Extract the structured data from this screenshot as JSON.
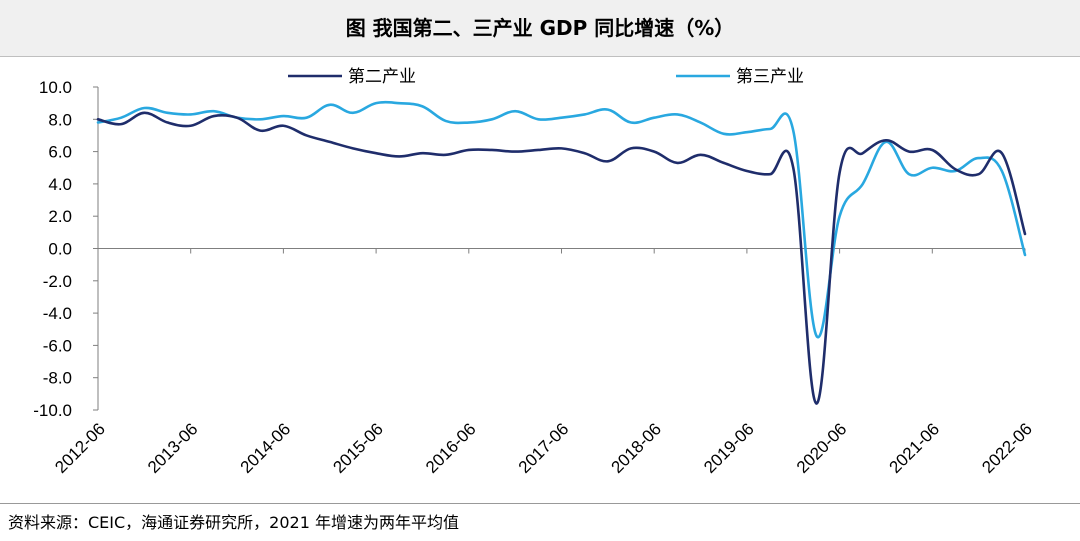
{
  "header": {
    "title": "图  我国第二、三产业 GDP 同比增速（%）"
  },
  "source": {
    "text": "资料来源：CEIC，海通证券研究所，2021 年增速为两年平均值"
  },
  "chart_data": {
    "type": "line",
    "title": "图  我国第二、三产业 GDP 同比增速（%）",
    "xlabel": "",
    "ylabel": "",
    "ylim": [
      -10,
      10
    ],
    "yticks": [
      "10.0",
      "8.0",
      "6.0",
      "4.0",
      "2.0",
      "0.0",
      "-2.0",
      "-4.0",
      "-6.0",
      "-8.0",
      "-10.0"
    ],
    "categories": [
      "2012-06",
      "2013-06",
      "2014-06",
      "2015-06",
      "2016-06",
      "2017-06",
      "2018-06",
      "2019-06",
      "2020-06",
      "2021-06",
      "2022-06"
    ],
    "legend_position": "top",
    "x": [
      "2012-06",
      "2012-09",
      "2012-12",
      "2013-03",
      "2013-06",
      "2013-09",
      "2013-12",
      "2014-03",
      "2014-06",
      "2014-09",
      "2014-12",
      "2015-03",
      "2015-06",
      "2015-09",
      "2015-12",
      "2016-03",
      "2016-06",
      "2016-09",
      "2016-12",
      "2017-03",
      "2017-06",
      "2017-09",
      "2017-12",
      "2018-03",
      "2018-06",
      "2018-09",
      "2018-12",
      "2019-03",
      "2019-06",
      "2019-09",
      "2019-12",
      "2020-03",
      "2020-06",
      "2020-09",
      "2020-12",
      "2021-03",
      "2021-06",
      "2021-09",
      "2021-12",
      "2022-03",
      "2022-06"
    ],
    "series": [
      {
        "name": "第二产业",
        "color": "#1f2d6b",
        "values": [
          8.0,
          7.7,
          8.4,
          7.8,
          7.6,
          8.2,
          8.1,
          7.3,
          7.6,
          7.0,
          6.6,
          6.2,
          5.9,
          5.7,
          5.9,
          5.8,
          6.1,
          6.1,
          6.0,
          6.1,
          6.2,
          5.9,
          5.4,
          6.2,
          6.0,
          5.3,
          5.8,
          5.3,
          4.8,
          4.6,
          5.0,
          -9.6,
          4.7,
          5.9,
          6.7,
          6.0,
          6.1,
          4.9,
          4.6,
          5.9,
          0.9
        ]
      },
      {
        "name": "第三产业",
        "color": "#29a8e0",
        "values": [
          7.8,
          8.1,
          8.7,
          8.4,
          8.3,
          8.5,
          8.1,
          8.0,
          8.2,
          8.1,
          8.9,
          8.4,
          9.0,
          9.0,
          8.8,
          7.9,
          7.8,
          8.0,
          8.5,
          8.0,
          8.1,
          8.3,
          8.6,
          7.8,
          8.1,
          8.3,
          7.8,
          7.1,
          7.2,
          7.4,
          7.3,
          -5.4,
          2.0,
          4.0,
          6.6,
          4.6,
          5.0,
          4.8,
          5.6,
          4.8,
          -0.4
        ]
      }
    ]
  }
}
